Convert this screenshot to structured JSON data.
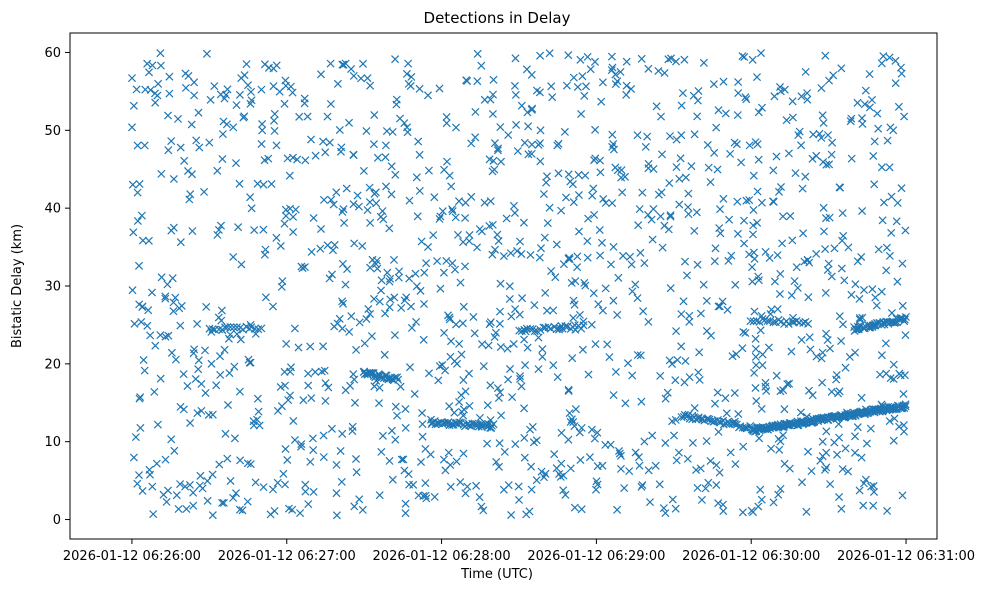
{
  "chart_data": {
    "type": "scatter",
    "title": "Detections in Delay",
    "xlabel": "Time (UTC)",
    "ylabel": "Bistatic Delay (km)",
    "x_ticks": [
      "2026-01-12 06:26:00",
      "2026-01-12 06:27:00",
      "2026-01-12 06:28:00",
      "2026-01-12 06:29:00",
      "2026-01-12 06:30:00",
      "2026-01-12 06:31:00"
    ],
    "x_tick_seconds": [
      0,
      60,
      120,
      180,
      240,
      300
    ],
    "xlim_seconds_from_first_tick": [
      -24,
      312
    ],
    "y_ticks": [
      0,
      10,
      20,
      30,
      40,
      50,
      60
    ],
    "ylim": [
      -2.5,
      62.5
    ],
    "grid": false,
    "legend": "none",
    "marker": "x",
    "color": "#1f77b4",
    "background_points": {
      "count": 1400,
      "x_range_seconds": [
        0,
        300
      ],
      "y_range": [
        0.5,
        60
      ],
      "distribution": "uniform"
    },
    "tracks": [
      {
        "x_seconds": [
          116,
          140
        ],
        "y": [
          12.5,
          12.0
        ],
        "count": 40
      },
      {
        "x_seconds": [
          213,
          240
        ],
        "y": [
          13.4,
          11.8
        ],
        "count": 40
      },
      {
        "x_seconds": [
          240,
          300
        ],
        "y": [
          11.4,
          14.6
        ],
        "count": 200
      },
      {
        "x_seconds": [
          90,
          103
        ],
        "y": [
          18.8,
          18.0
        ],
        "count": 30
      },
      {
        "x_seconds": [
          280,
          300
        ],
        "y": [
          24.5,
          25.8
        ],
        "count": 45
      },
      {
        "x_seconds": [
          30,
          50
        ],
        "y": [
          24.6,
          24.6
        ],
        "count": 18
      },
      {
        "x_seconds": [
          150,
          175
        ],
        "y": [
          24.3,
          24.8
        ],
        "count": 25
      },
      {
        "x_seconds": [
          240,
          262
        ],
        "y": [
          25.6,
          25.2
        ],
        "count": 22
      }
    ]
  }
}
